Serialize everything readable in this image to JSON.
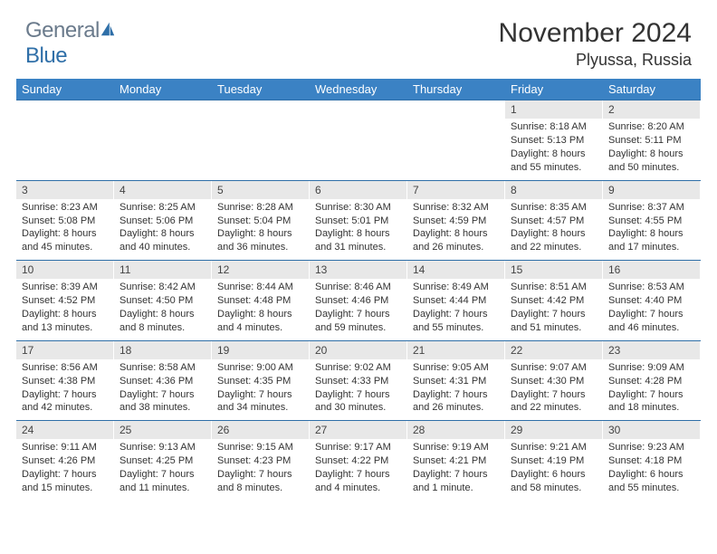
{
  "logo": {
    "text1": "General",
    "text2": "Blue"
  },
  "title": "November 2024",
  "location": "Plyussa, Russia",
  "colors": {
    "header_bg": "#3b82c4",
    "header_text": "#ffffff",
    "daynum_bg": "#e8e8e8",
    "week_border": "#2f6fa8",
    "logo_gray": "#6b7b8c",
    "logo_blue": "#2f6fa8",
    "body_text": "#333333",
    "background": "#ffffff"
  },
  "day_names": [
    "Sunday",
    "Monday",
    "Tuesday",
    "Wednesday",
    "Thursday",
    "Friday",
    "Saturday"
  ],
  "weeks": [
    [
      {
        "n": "",
        "sr": "",
        "ss": "",
        "dl": ""
      },
      {
        "n": "",
        "sr": "",
        "ss": "",
        "dl": ""
      },
      {
        "n": "",
        "sr": "",
        "ss": "",
        "dl": ""
      },
      {
        "n": "",
        "sr": "",
        "ss": "",
        "dl": ""
      },
      {
        "n": "",
        "sr": "",
        "ss": "",
        "dl": ""
      },
      {
        "n": "1",
        "sr": "Sunrise: 8:18 AM",
        "ss": "Sunset: 5:13 PM",
        "dl": "Daylight: 8 hours and 55 minutes."
      },
      {
        "n": "2",
        "sr": "Sunrise: 8:20 AM",
        "ss": "Sunset: 5:11 PM",
        "dl": "Daylight: 8 hours and 50 minutes."
      }
    ],
    [
      {
        "n": "3",
        "sr": "Sunrise: 8:23 AM",
        "ss": "Sunset: 5:08 PM",
        "dl": "Daylight: 8 hours and 45 minutes."
      },
      {
        "n": "4",
        "sr": "Sunrise: 8:25 AM",
        "ss": "Sunset: 5:06 PM",
        "dl": "Daylight: 8 hours and 40 minutes."
      },
      {
        "n": "5",
        "sr": "Sunrise: 8:28 AM",
        "ss": "Sunset: 5:04 PM",
        "dl": "Daylight: 8 hours and 36 minutes."
      },
      {
        "n": "6",
        "sr": "Sunrise: 8:30 AM",
        "ss": "Sunset: 5:01 PM",
        "dl": "Daylight: 8 hours and 31 minutes."
      },
      {
        "n": "7",
        "sr": "Sunrise: 8:32 AM",
        "ss": "Sunset: 4:59 PM",
        "dl": "Daylight: 8 hours and 26 minutes."
      },
      {
        "n": "8",
        "sr": "Sunrise: 8:35 AM",
        "ss": "Sunset: 4:57 PM",
        "dl": "Daylight: 8 hours and 22 minutes."
      },
      {
        "n": "9",
        "sr": "Sunrise: 8:37 AM",
        "ss": "Sunset: 4:55 PM",
        "dl": "Daylight: 8 hours and 17 minutes."
      }
    ],
    [
      {
        "n": "10",
        "sr": "Sunrise: 8:39 AM",
        "ss": "Sunset: 4:52 PM",
        "dl": "Daylight: 8 hours and 13 minutes."
      },
      {
        "n": "11",
        "sr": "Sunrise: 8:42 AM",
        "ss": "Sunset: 4:50 PM",
        "dl": "Daylight: 8 hours and 8 minutes."
      },
      {
        "n": "12",
        "sr": "Sunrise: 8:44 AM",
        "ss": "Sunset: 4:48 PM",
        "dl": "Daylight: 8 hours and 4 minutes."
      },
      {
        "n": "13",
        "sr": "Sunrise: 8:46 AM",
        "ss": "Sunset: 4:46 PM",
        "dl": "Daylight: 7 hours and 59 minutes."
      },
      {
        "n": "14",
        "sr": "Sunrise: 8:49 AM",
        "ss": "Sunset: 4:44 PM",
        "dl": "Daylight: 7 hours and 55 minutes."
      },
      {
        "n": "15",
        "sr": "Sunrise: 8:51 AM",
        "ss": "Sunset: 4:42 PM",
        "dl": "Daylight: 7 hours and 51 minutes."
      },
      {
        "n": "16",
        "sr": "Sunrise: 8:53 AM",
        "ss": "Sunset: 4:40 PM",
        "dl": "Daylight: 7 hours and 46 minutes."
      }
    ],
    [
      {
        "n": "17",
        "sr": "Sunrise: 8:56 AM",
        "ss": "Sunset: 4:38 PM",
        "dl": "Daylight: 7 hours and 42 minutes."
      },
      {
        "n": "18",
        "sr": "Sunrise: 8:58 AM",
        "ss": "Sunset: 4:36 PM",
        "dl": "Daylight: 7 hours and 38 minutes."
      },
      {
        "n": "19",
        "sr": "Sunrise: 9:00 AM",
        "ss": "Sunset: 4:35 PM",
        "dl": "Daylight: 7 hours and 34 minutes."
      },
      {
        "n": "20",
        "sr": "Sunrise: 9:02 AM",
        "ss": "Sunset: 4:33 PM",
        "dl": "Daylight: 7 hours and 30 minutes."
      },
      {
        "n": "21",
        "sr": "Sunrise: 9:05 AM",
        "ss": "Sunset: 4:31 PM",
        "dl": "Daylight: 7 hours and 26 minutes."
      },
      {
        "n": "22",
        "sr": "Sunrise: 9:07 AM",
        "ss": "Sunset: 4:30 PM",
        "dl": "Daylight: 7 hours and 22 minutes."
      },
      {
        "n": "23",
        "sr": "Sunrise: 9:09 AM",
        "ss": "Sunset: 4:28 PM",
        "dl": "Daylight: 7 hours and 18 minutes."
      }
    ],
    [
      {
        "n": "24",
        "sr": "Sunrise: 9:11 AM",
        "ss": "Sunset: 4:26 PM",
        "dl": "Daylight: 7 hours and 15 minutes."
      },
      {
        "n": "25",
        "sr": "Sunrise: 9:13 AM",
        "ss": "Sunset: 4:25 PM",
        "dl": "Daylight: 7 hours and 11 minutes."
      },
      {
        "n": "26",
        "sr": "Sunrise: 9:15 AM",
        "ss": "Sunset: 4:23 PM",
        "dl": "Daylight: 7 hours and 8 minutes."
      },
      {
        "n": "27",
        "sr": "Sunrise: 9:17 AM",
        "ss": "Sunset: 4:22 PM",
        "dl": "Daylight: 7 hours and 4 minutes."
      },
      {
        "n": "28",
        "sr": "Sunrise: 9:19 AM",
        "ss": "Sunset: 4:21 PM",
        "dl": "Daylight: 7 hours and 1 minute."
      },
      {
        "n": "29",
        "sr": "Sunrise: 9:21 AM",
        "ss": "Sunset: 4:19 PM",
        "dl": "Daylight: 6 hours and 58 minutes."
      },
      {
        "n": "30",
        "sr": "Sunrise: 9:23 AM",
        "ss": "Sunset: 4:18 PM",
        "dl": "Daylight: 6 hours and 55 minutes."
      }
    ]
  ]
}
